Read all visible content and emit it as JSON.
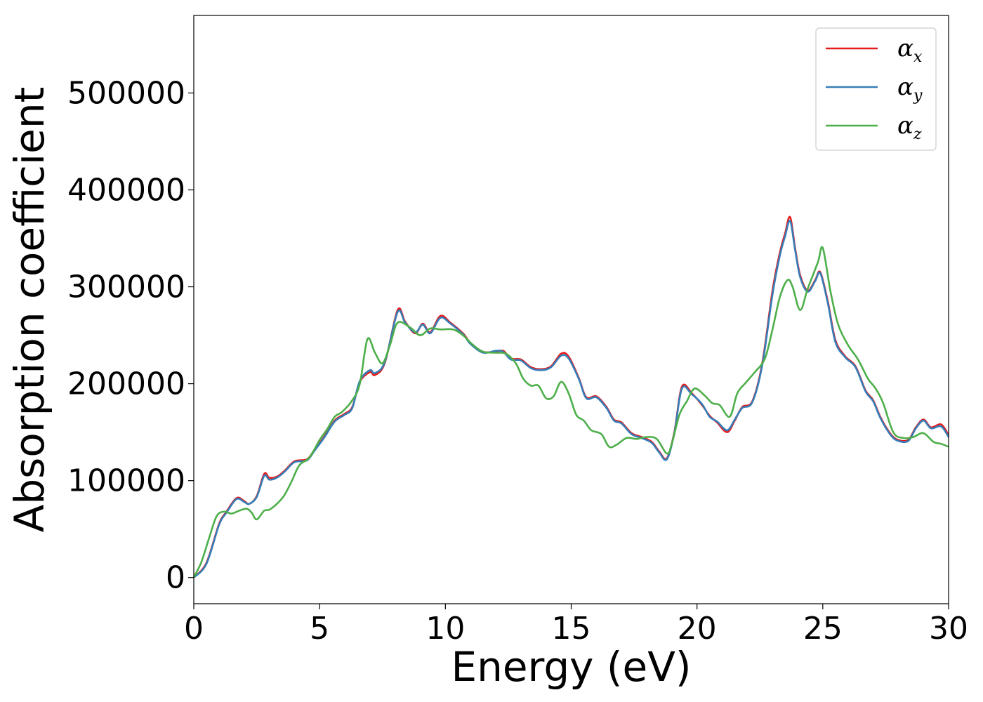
{
  "chart_data": {
    "type": "line",
    "title": "",
    "xlabel": "Energy (eV)",
    "ylabel": "Absorption coefficient",
    "xlim": [
      0,
      30
    ],
    "ylim": [
      -27000,
      580000
    ],
    "xticks": [
      "0",
      "5",
      "10",
      "15",
      "20",
      "25",
      "30"
    ],
    "yticks": [
      "0",
      "100000",
      "200000",
      "300000",
      "400000",
      "500000"
    ],
    "grid": false,
    "legend_position": "top-right",
    "series": [
      {
        "name": "α",
        "subscript": "x",
        "color": "#e41a1c",
        "points": [
          [
            0,
            0
          ],
          [
            0.5,
            15000
          ],
          [
            1.0,
            55000
          ],
          [
            1.3,
            68000
          ],
          [
            1.7,
            82000
          ],
          [
            2.0,
            79000
          ],
          [
            2.2,
            76000
          ],
          [
            2.5,
            84000
          ],
          [
            2.8,
            107000
          ],
          [
            3.0,
            103000
          ],
          [
            3.3,
            104000
          ],
          [
            3.6,
            110000
          ],
          [
            4.0,
            120000
          ],
          [
            4.5,
            122000
          ],
          [
            4.8,
            132000
          ],
          [
            5.2,
            146000
          ],
          [
            5.6,
            162000
          ],
          [
            6.0,
            169000
          ],
          [
            6.3,
            176000
          ],
          [
            6.6,
            202000
          ],
          [
            7.0,
            212000
          ],
          [
            7.2,
            209000
          ],
          [
            7.6,
            222000
          ],
          [
            8.1,
            276000
          ],
          [
            8.4,
            264000
          ],
          [
            8.8,
            252000
          ],
          [
            9.1,
            262000
          ],
          [
            9.4,
            253000
          ],
          [
            9.8,
            270000
          ],
          [
            10.2,
            263000
          ],
          [
            10.7,
            252000
          ],
          [
            11.0,
            242000
          ],
          [
            11.5,
            233000
          ],
          [
            12.0,
            233000
          ],
          [
            12.3,
            234000
          ],
          [
            12.6,
            226000
          ],
          [
            13.0,
            225000
          ],
          [
            13.4,
            217000
          ],
          [
            13.8,
            215000
          ],
          [
            14.2,
            218000
          ],
          [
            14.6,
            231000
          ],
          [
            14.9,
            228000
          ],
          [
            15.3,
            206000
          ],
          [
            15.6,
            186000
          ],
          [
            16.0,
            187000
          ],
          [
            16.4,
            176000
          ],
          [
            16.7,
            163000
          ],
          [
            17.0,
            160000
          ],
          [
            17.4,
            149000
          ],
          [
            17.8,
            145000
          ],
          [
            18.2,
            140000
          ],
          [
            18.5,
            130000
          ],
          [
            18.8,
            123000
          ],
          [
            19.1,
            150000
          ],
          [
            19.4,
            197000
          ],
          [
            19.8,
            190000
          ],
          [
            20.2,
            178000
          ],
          [
            20.5,
            167000
          ],
          [
            20.8,
            160000
          ],
          [
            21.2,
            150000
          ],
          [
            21.5,
            162000
          ],
          [
            21.8,
            176000
          ],
          [
            22.2,
            182000
          ],
          [
            22.6,
            222000
          ],
          [
            23.0,
            296000
          ],
          [
            23.3,
            336000
          ],
          [
            23.5,
            355000
          ],
          [
            23.7,
            372000
          ],
          [
            23.9,
            340000
          ],
          [
            24.1,
            312000
          ],
          [
            24.4,
            296000
          ],
          [
            24.7,
            307000
          ],
          [
            24.9,
            315000
          ],
          [
            25.2,
            285000
          ],
          [
            25.5,
            245000
          ],
          [
            25.9,
            228000
          ],
          [
            26.3,
            218000
          ],
          [
            26.7,
            193000
          ],
          [
            27.0,
            183000
          ],
          [
            27.3,
            165000
          ],
          [
            27.7,
            148000
          ],
          [
            28.0,
            142000
          ],
          [
            28.4,
            142000
          ],
          [
            28.7,
            155000
          ],
          [
            29.0,
            163000
          ],
          [
            29.3,
            155000
          ],
          [
            29.7,
            158000
          ],
          [
            30.0,
            147000
          ]
        ]
      },
      {
        "name": "α",
        "subscript": "y",
        "color": "#377eb8",
        "points": [
          [
            0,
            0
          ],
          [
            0.5,
            14000
          ],
          [
            1.0,
            54000
          ],
          [
            1.3,
            67000
          ],
          [
            1.7,
            81000
          ],
          [
            2.0,
            78000
          ],
          [
            2.2,
            76000
          ],
          [
            2.5,
            83000
          ],
          [
            2.8,
            105000
          ],
          [
            3.0,
            101000
          ],
          [
            3.3,
            103000
          ],
          [
            3.6,
            109000
          ],
          [
            4.0,
            119000
          ],
          [
            4.5,
            121000
          ],
          [
            4.8,
            131000
          ],
          [
            5.2,
            145000
          ],
          [
            5.6,
            161000
          ],
          [
            6.0,
            168000
          ],
          [
            6.3,
            175000
          ],
          [
            6.6,
            203000
          ],
          [
            7.0,
            214000
          ],
          [
            7.2,
            211000
          ],
          [
            7.6,
            223000
          ],
          [
            8.1,
            274000
          ],
          [
            8.4,
            263000
          ],
          [
            8.8,
            253000
          ],
          [
            9.1,
            261000
          ],
          [
            9.4,
            252000
          ],
          [
            9.8,
            268000
          ],
          [
            10.2,
            262000
          ],
          [
            10.7,
            251000
          ],
          [
            11.0,
            241000
          ],
          [
            11.5,
            232000
          ],
          [
            12.0,
            234000
          ],
          [
            12.3,
            233000
          ],
          [
            12.6,
            225000
          ],
          [
            13.0,
            224000
          ],
          [
            13.4,
            216000
          ],
          [
            13.8,
            214000
          ],
          [
            14.2,
            217000
          ],
          [
            14.6,
            229000
          ],
          [
            14.9,
            226000
          ],
          [
            15.3,
            205000
          ],
          [
            15.6,
            185000
          ],
          [
            16.0,
            186000
          ],
          [
            16.4,
            175000
          ],
          [
            16.7,
            162000
          ],
          [
            17.0,
            159000
          ],
          [
            17.4,
            148000
          ],
          [
            17.8,
            144000
          ],
          [
            18.2,
            139000
          ],
          [
            18.5,
            129000
          ],
          [
            18.8,
            122000
          ],
          [
            19.1,
            149000
          ],
          [
            19.4,
            195000
          ],
          [
            19.8,
            189000
          ],
          [
            20.2,
            179000
          ],
          [
            20.5,
            166000
          ],
          [
            20.8,
            161000
          ],
          [
            21.2,
            152000
          ],
          [
            21.5,
            163000
          ],
          [
            21.8,
            175000
          ],
          [
            22.2,
            181000
          ],
          [
            22.6,
            220000
          ],
          [
            23.0,
            292000
          ],
          [
            23.3,
            333000
          ],
          [
            23.5,
            352000
          ],
          [
            23.7,
            368000
          ],
          [
            23.9,
            338000
          ],
          [
            24.1,
            310000
          ],
          [
            24.4,
            295000
          ],
          [
            24.7,
            306000
          ],
          [
            24.9,
            314000
          ],
          [
            25.2,
            283000
          ],
          [
            25.5,
            243000
          ],
          [
            25.9,
            227000
          ],
          [
            26.3,
            217000
          ],
          [
            26.7,
            192000
          ],
          [
            27.0,
            182000
          ],
          [
            27.3,
            164000
          ],
          [
            27.7,
            147000
          ],
          [
            28.0,
            141000
          ],
          [
            28.4,
            141000
          ],
          [
            28.7,
            154000
          ],
          [
            29.0,
            162000
          ],
          [
            29.3,
            154000
          ],
          [
            29.7,
            156000
          ],
          [
            30.0,
            145000
          ]
        ]
      },
      {
        "name": "α",
        "subscript": "z",
        "color": "#4daf4a",
        "points": [
          [
            0,
            0
          ],
          [
            0.3,
            16000
          ],
          [
            0.6,
            40000
          ],
          [
            0.9,
            63000
          ],
          [
            1.2,
            68000
          ],
          [
            1.5,
            66000
          ],
          [
            1.8,
            69000
          ],
          [
            2.1,
            71000
          ],
          [
            2.3,
            67000
          ],
          [
            2.5,
            60000
          ],
          [
            2.8,
            69000
          ],
          [
            3.0,
            70000
          ],
          [
            3.3,
            76000
          ],
          [
            3.6,
            85000
          ],
          [
            3.9,
            100000
          ],
          [
            4.2,
            116000
          ],
          [
            4.6,
            124000
          ],
          [
            5.0,
            142000
          ],
          [
            5.3,
            153000
          ],
          [
            5.6,
            166000
          ],
          [
            5.9,
            171000
          ],
          [
            6.3,
            183000
          ],
          [
            6.6,
            200000
          ],
          [
            6.9,
            246000
          ],
          [
            7.2,
            232000
          ],
          [
            7.5,
            221000
          ],
          [
            7.8,
            240000
          ],
          [
            8.1,
            263000
          ],
          [
            8.6,
            258000
          ],
          [
            9.0,
            250000
          ],
          [
            9.4,
            257000
          ],
          [
            9.8,
            256000
          ],
          [
            10.3,
            256000
          ],
          [
            10.7,
            250000
          ],
          [
            11.1,
            240000
          ],
          [
            11.5,
            233000
          ],
          [
            12.0,
            232000
          ],
          [
            12.4,
            231000
          ],
          [
            12.8,
            221000
          ],
          [
            13.1,
            205000
          ],
          [
            13.4,
            198000
          ],
          [
            13.7,
            198000
          ],
          [
            14.0,
            185000
          ],
          [
            14.3,
            187000
          ],
          [
            14.6,
            202000
          ],
          [
            14.9,
            190000
          ],
          [
            15.2,
            168000
          ],
          [
            15.5,
            162000
          ],
          [
            15.8,
            152000
          ],
          [
            16.2,
            148000
          ],
          [
            16.5,
            135000
          ],
          [
            16.8,
            137000
          ],
          [
            17.2,
            144000
          ],
          [
            17.6,
            143000
          ],
          [
            18.0,
            145000
          ],
          [
            18.4,
            143000
          ],
          [
            18.8,
            128000
          ],
          [
            19.0,
            138000
          ],
          [
            19.3,
            168000
          ],
          [
            19.6,
            182000
          ],
          [
            19.9,
            195000
          ],
          [
            20.3,
            188000
          ],
          [
            20.6,
            180000
          ],
          [
            20.9,
            178000
          ],
          [
            21.3,
            166000
          ],
          [
            21.6,
            190000
          ],
          [
            21.9,
            200000
          ],
          [
            22.3,
            212000
          ],
          [
            22.7,
            226000
          ],
          [
            23.0,
            256000
          ],
          [
            23.3,
            290000
          ],
          [
            23.6,
            307000
          ],
          [
            23.8,
            300000
          ],
          [
            24.1,
            276000
          ],
          [
            24.4,
            298000
          ],
          [
            24.8,
            325000
          ],
          [
            25.0,
            340000
          ],
          [
            25.3,
            296000
          ],
          [
            25.6,
            262000
          ],
          [
            26.0,
            240000
          ],
          [
            26.4,
            225000
          ],
          [
            26.8,
            205000
          ],
          [
            27.1,
            195000
          ],
          [
            27.4,
            180000
          ],
          [
            27.8,
            150000
          ],
          [
            28.2,
            144000
          ],
          [
            28.6,
            145000
          ],
          [
            29.0,
            149000
          ],
          [
            29.4,
            140000
          ],
          [
            29.7,
            138000
          ],
          [
            30.0,
            135000
          ]
        ]
      }
    ]
  }
}
